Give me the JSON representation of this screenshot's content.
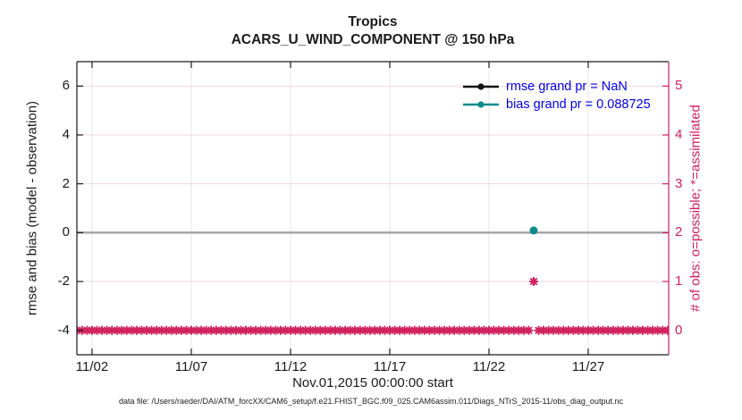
{
  "titles": {
    "line1": "Tropics",
    "line2": "ACARS_U_WIND_COMPONENT @ 150 hPa"
  },
  "legend": [
    {
      "label": "rmse grand pr = NaN",
      "color": "#111111"
    },
    {
      "label": "bias grand pr = 0.088725",
      "color": "#0e8c8c"
    }
  ],
  "caption": "data file: /Users/raeder/DAI/ATM_forcXX/CAM6_setup/f.e21.FHIST_BGC.f09_025.CAM6assim.011/Diags_NTrS_2015-11/obs_diag_output.nc",
  "colors": {
    "right_axis": "#d1205c",
    "left_axis": "#1a1a1a",
    "legend_text": "#0000ee",
    "bias_teal": "#0e8c8c",
    "rmse_black": "#111111",
    "grid_horizontal": "#f2d7e0",
    "grid_vertical": "#e4e4e4",
    "zero_line": "#a6a0a3"
  },
  "chart_data": {
    "type": "line",
    "title": "Tropics — ACARS_U_WIND_COMPONENT @ 150 hPa",
    "x_axis": {
      "label": "Nov.01,2015 00:00:00 start",
      "tick_labels": [
        "11/02",
        "11/07",
        "11/12",
        "11/17",
        "11/22",
        "11/27"
      ],
      "tick_days": [
        2,
        7,
        12,
        17,
        22,
        27
      ],
      "range_days": [
        1.23,
        31.05
      ],
      "units": "day of Nov 2015"
    },
    "y_left": {
      "label": "rmse and bias (model - observation)",
      "ticks": [
        -4,
        -2,
        0,
        2,
        4,
        6
      ],
      "range": [
        -5,
        7
      ]
    },
    "y_right": {
      "label": "# of obs: o=possible; *=assimilated",
      "ticks": [
        0,
        1,
        2,
        3,
        4,
        5
      ],
      "range": [
        -0.5,
        5.5
      ]
    },
    "grid": {
      "horizontal": true,
      "vertical": true
    },
    "legend_position": "top-right-inside",
    "zero_line": {
      "value": 0
    },
    "series": [
      {
        "name": "rmse",
        "axis": "left",
        "marker": "circle",
        "grand_value": "NaN",
        "points": []
      },
      {
        "name": "bias",
        "axis": "left",
        "marker": "circle",
        "grand_value": 0.088725,
        "points": [
          {
            "day": 24.25,
            "value": 0.088725
          }
        ]
      },
      {
        "name": "obs_count",
        "axis": "right",
        "marker": "asterisk",
        "sampling": {
          "start_day": 1.25,
          "end_day": 31.0,
          "step_day": 0.25
        },
        "default_value": 0,
        "exceptions": [
          {
            "day": 24.25,
            "value": 1
          }
        ]
      }
    ]
  }
}
